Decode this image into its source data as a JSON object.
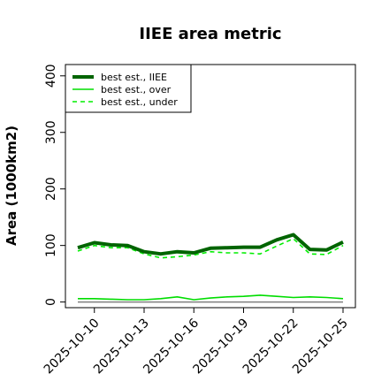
{
  "chart_data": {
    "type": "line",
    "title": "IIEE area metric",
    "xlabel": "",
    "ylabel": "Area (1000km2)",
    "ylim": [
      -10,
      420
    ],
    "yticks": [
      0,
      100,
      200,
      300,
      400
    ],
    "x": [
      "2025-10-09",
      "2025-10-10",
      "2025-10-11",
      "2025-10-12",
      "2025-10-13",
      "2025-10-14",
      "2025-10-15",
      "2025-10-16",
      "2025-10-17",
      "2025-10-18",
      "2025-10-19",
      "2025-10-20",
      "2025-10-21",
      "2025-10-22",
      "2025-10-23",
      "2025-10-24",
      "2025-10-25"
    ],
    "xticks": [
      "2025-10-10",
      "2025-10-13",
      "2025-10-16",
      "2025-10-19",
      "2025-10-22",
      "2025-10-25"
    ],
    "grid": false,
    "legend_position": "top-left",
    "series": [
      {
        "name": "best est., IIEE",
        "color": "#006400",
        "style": "solid",
        "values": [
          96,
          105,
          101,
          100,
          89,
          85,
          89,
          87,
          95,
          96,
          97,
          97,
          110,
          119,
          93,
          92,
          106
        ]
      },
      {
        "name": "best est., over",
        "color": "#00dd00",
        "style": "solid",
        "values": [
          6,
          6,
          5,
          4,
          4,
          6,
          9,
          4,
          7,
          9,
          10,
          12,
          10,
          8,
          9,
          8,
          6
        ]
      },
      {
        "name": "best est., under",
        "color": "#00ee00",
        "style": "dashed",
        "values": [
          90,
          100,
          96,
          96,
          85,
          78,
          80,
          83,
          89,
          87,
          87,
          85,
          99,
          112,
          85,
          84,
          100
        ]
      },
      {
        "name": "",
        "color": "#7f7f7f",
        "style": "solid",
        "values": [
          0,
          0,
          0,
          0,
          0,
          0,
          0,
          0,
          0,
          0,
          0,
          0,
          0,
          0,
          0,
          0,
          0
        ]
      }
    ]
  }
}
